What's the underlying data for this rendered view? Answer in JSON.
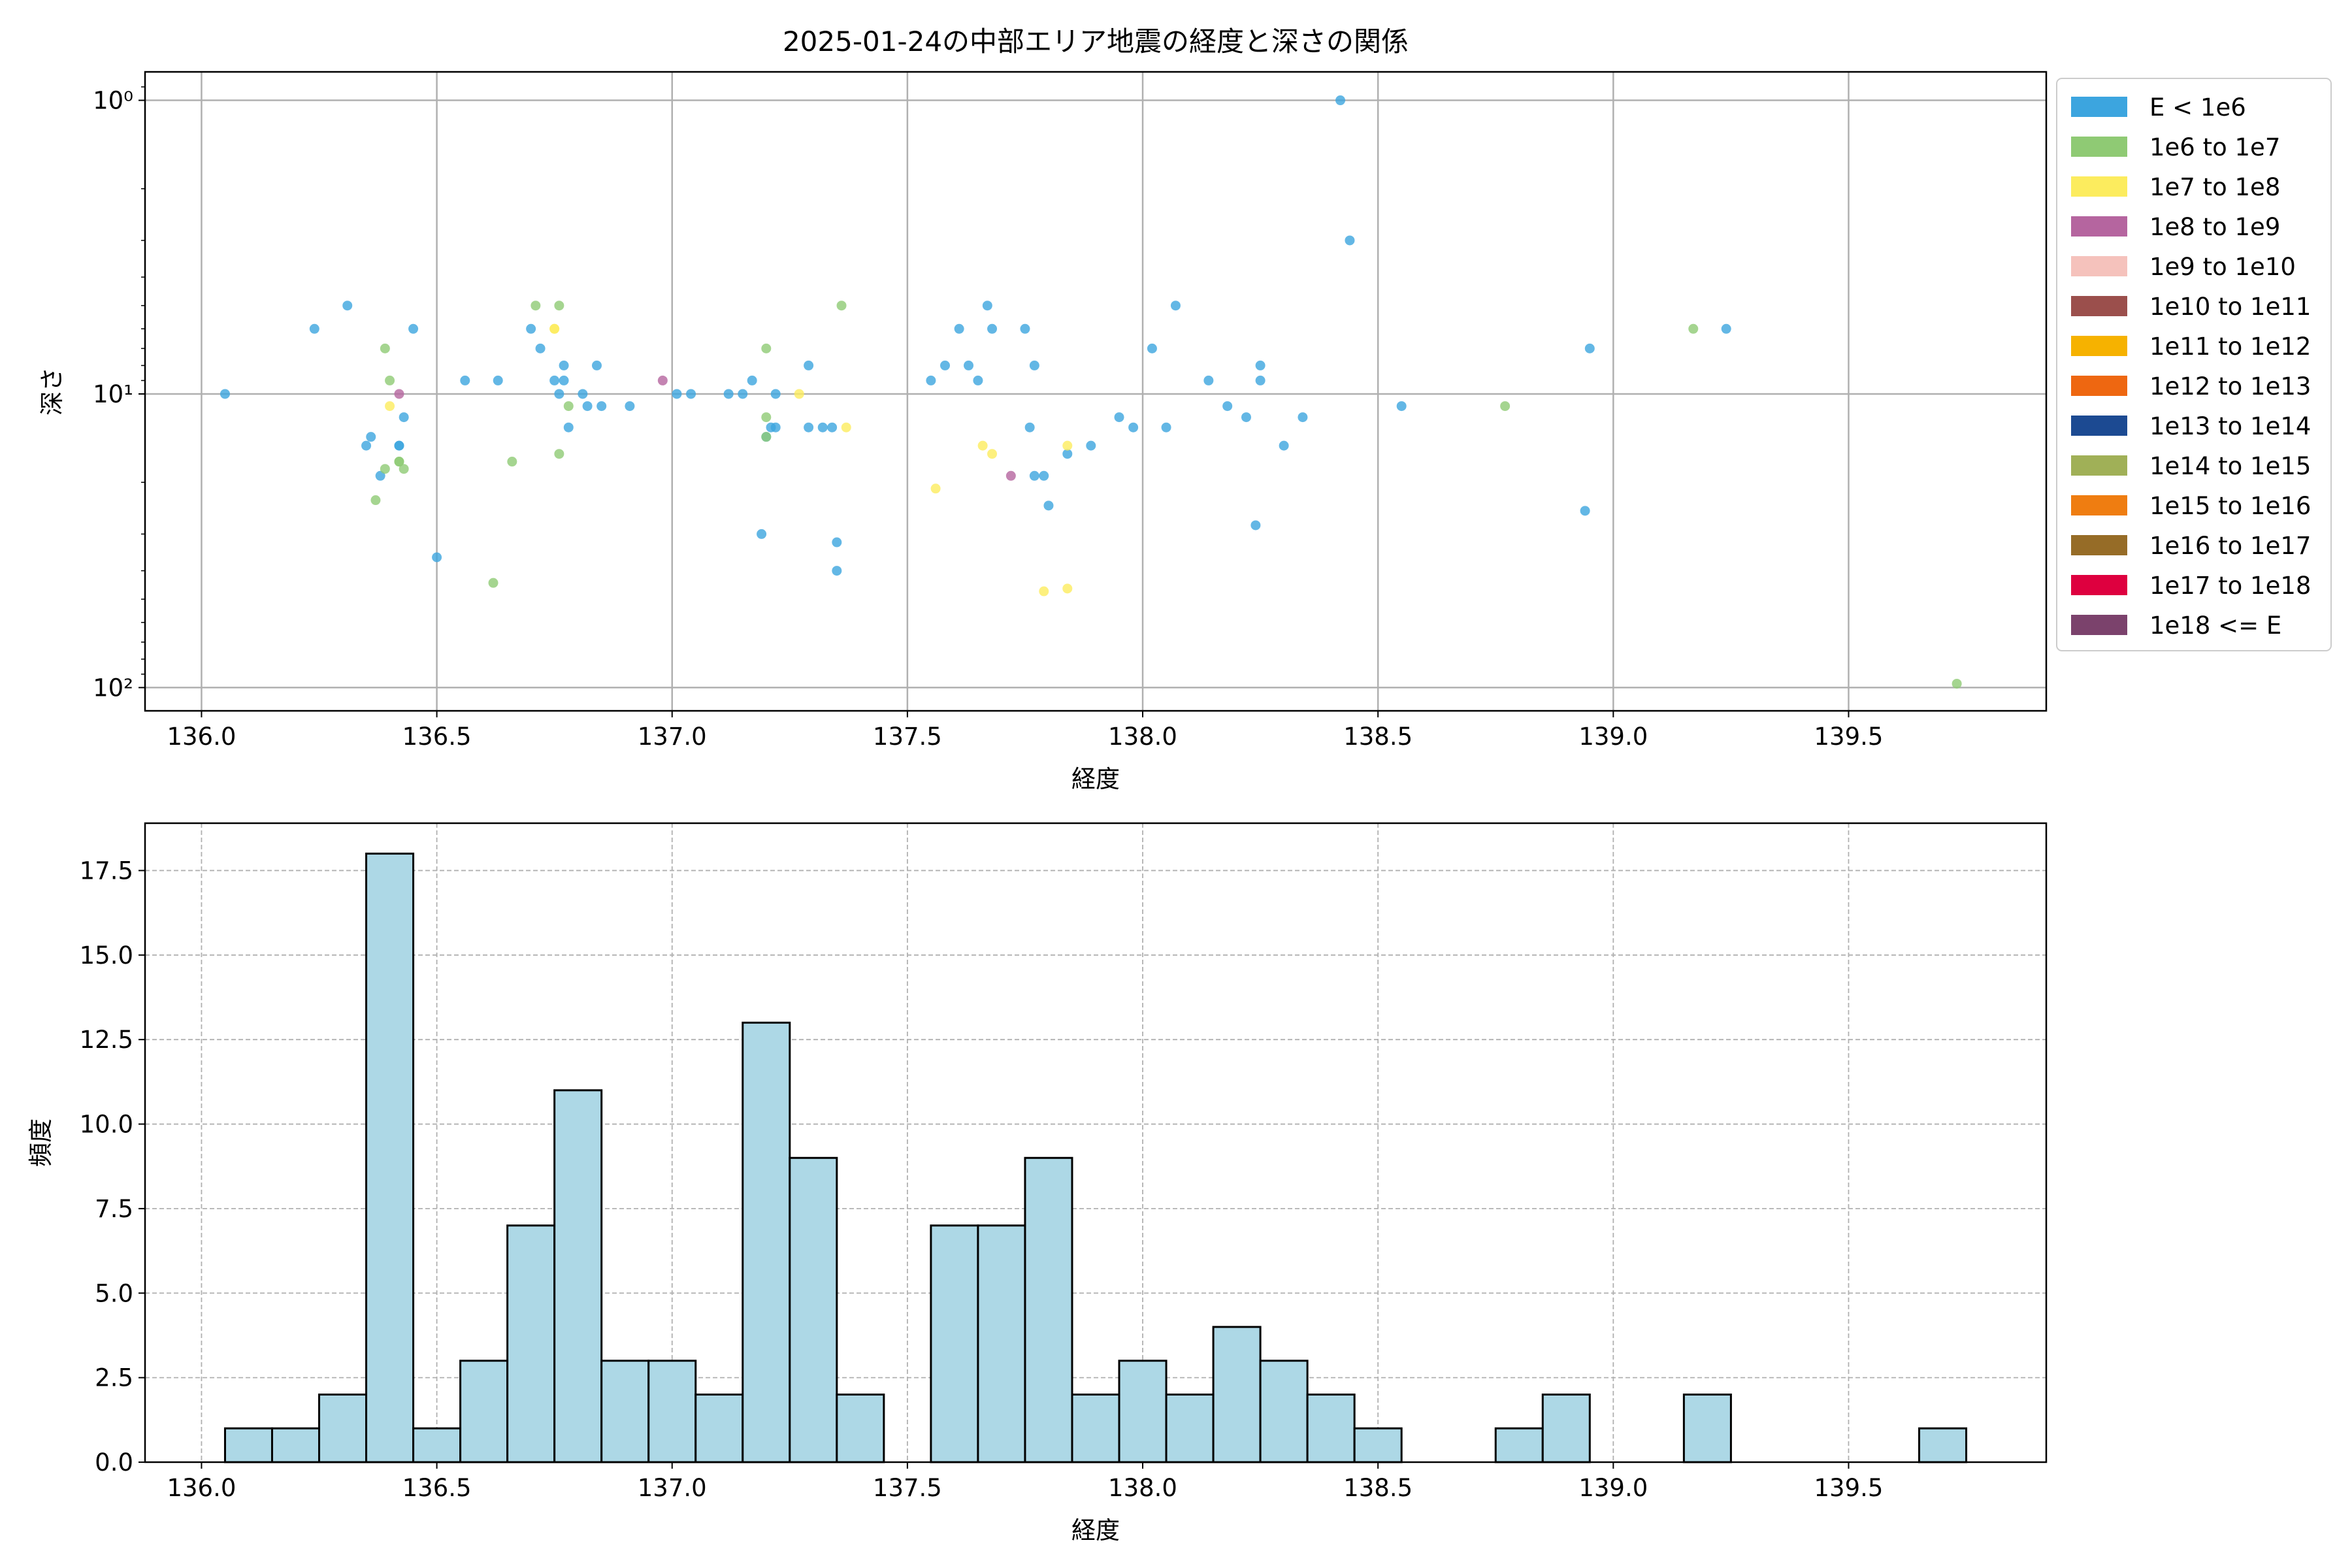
{
  "title": "2025-01-24の中部エリア地震の経度と深さの関係",
  "chart_data": [
    {
      "type": "scatter",
      "xlabel": "経度",
      "ylabel": "深さ",
      "xlim": [
        135.88,
        139.92
      ],
      "y_scale": "log",
      "y_inverted": true,
      "ylim": [
        0.8,
        120
      ],
      "x_ticks": [
        136.0,
        136.5,
        137.0,
        137.5,
        138.0,
        138.5,
        139.0,
        139.5
      ],
      "x_tick_labels": [
        "136.0",
        "136.5",
        "137.0",
        "137.5",
        "138.0",
        "138.5",
        "139.0",
        "139.5"
      ],
      "y_ticks": [
        1,
        10,
        100
      ],
      "y_tick_labels": [
        "10⁰",
        "10¹",
        "10²"
      ],
      "grid": true,
      "legend_position": "outside-right",
      "legend": [
        {
          "label": "E < 1e6",
          "color": "#3ca5df"
        },
        {
          "label": "1e6 to 1e7",
          "color": "#8fca74"
        },
        {
          "label": "1e7 to 1e8",
          "color": "#fcec5e"
        },
        {
          "label": "1e8 to 1e9",
          "color": "#b5659f"
        },
        {
          "label": "1e9 to 1e10",
          "color": "#f5c2bc"
        },
        {
          "label": "1e10 to 1e11",
          "color": "#9b4f4c"
        },
        {
          "label": "1e11 to 1e12",
          "color": "#f6b200"
        },
        {
          "label": "1e12 to 1e13",
          "color": "#ee6711"
        },
        {
          "label": "1e13 to 1e14",
          "color": "#1c4a92"
        },
        {
          "label": "1e14 to 1e15",
          "color": "#a0b057"
        },
        {
          "label": "1e15 to 1e16",
          "color": "#ef7d11"
        },
        {
          "label": "1e16 to 1e17",
          "color": "#966c27"
        },
        {
          "label": "1e17 to 1e18",
          "color": "#de003f"
        },
        {
          "label": "1e18 <= E",
          "color": "#7b426c"
        }
      ],
      "series": [
        {
          "name": "E < 1e6",
          "color": "#3ca5df",
          "points": [
            [
              136.05,
              10
            ],
            [
              136.24,
              6
            ],
            [
              136.31,
              5
            ],
            [
              136.35,
              15
            ],
            [
              136.36,
              14
            ],
            [
              136.38,
              19
            ],
            [
              136.42,
              15
            ],
            [
              136.42,
              15
            ],
            [
              136.43,
              12
            ],
            [
              136.45,
              6
            ],
            [
              136.5,
              36
            ],
            [
              136.56,
              9
            ],
            [
              136.63,
              9
            ],
            [
              136.7,
              6
            ],
            [
              136.72,
              7
            ],
            [
              136.75,
              9
            ],
            [
              136.76,
              10
            ],
            [
              136.77,
              8
            ],
            [
              136.77,
              9
            ],
            [
              136.78,
              13
            ],
            [
              136.81,
              10
            ],
            [
              136.82,
              11
            ],
            [
              136.84,
              8
            ],
            [
              136.85,
              11
            ],
            [
              136.91,
              11
            ],
            [
              137.01,
              10
            ],
            [
              137.04,
              10
            ],
            [
              137.12,
              10
            ],
            [
              137.15,
              10
            ],
            [
              137.17,
              9
            ],
            [
              137.19,
              30
            ],
            [
              137.2,
              14
            ],
            [
              137.21,
              13
            ],
            [
              137.22,
              10
            ],
            [
              137.22,
              13
            ],
            [
              137.29,
              13
            ],
            [
              137.29,
              8
            ],
            [
              137.32,
              13
            ],
            [
              137.34,
              13
            ],
            [
              137.35,
              32
            ],
            [
              137.35,
              40
            ],
            [
              137.55,
              9
            ],
            [
              137.58,
              8
            ],
            [
              137.61,
              6
            ],
            [
              137.63,
              8
            ],
            [
              137.65,
              9
            ],
            [
              137.67,
              5
            ],
            [
              137.68,
              6
            ],
            [
              137.75,
              6
            ],
            [
              137.76,
              13
            ],
            [
              137.77,
              8
            ],
            [
              137.77,
              19
            ],
            [
              137.79,
              19
            ],
            [
              137.8,
              24
            ],
            [
              137.84,
              16
            ],
            [
              137.89,
              15
            ],
            [
              137.95,
              12
            ],
            [
              137.98,
              13
            ],
            [
              138.02,
              7
            ],
            [
              138.05,
              13
            ],
            [
              138.07,
              5
            ],
            [
              138.14,
              9
            ],
            [
              138.18,
              11
            ],
            [
              138.22,
              12
            ],
            [
              138.25,
              9
            ],
            [
              138.25,
              8
            ],
            [
              138.24,
              28
            ],
            [
              138.3,
              15
            ],
            [
              138.34,
              12
            ],
            [
              138.42,
              1
            ],
            [
              138.44,
              3
            ],
            [
              138.55,
              11
            ],
            [
              138.94,
              25
            ],
            [
              138.95,
              7
            ],
            [
              139.24,
              6
            ]
          ]
        },
        {
          "name": "1e6 to 1e7",
          "color": "#8fca74",
          "points": [
            [
              136.37,
              23
            ],
            [
              136.39,
              7
            ],
            [
              136.39,
              18
            ],
            [
              136.4,
              9
            ],
            [
              136.42,
              17
            ],
            [
              136.42,
              17
            ],
            [
              136.43,
              18
            ],
            [
              136.62,
              44
            ],
            [
              136.66,
              17
            ],
            [
              136.71,
              5
            ],
            [
              136.76,
              5
            ],
            [
              136.76,
              16
            ],
            [
              136.78,
              11
            ],
            [
              137.2,
              7
            ],
            [
              137.2,
              12
            ],
            [
              137.2,
              14
            ],
            [
              137.36,
              5
            ],
            [
              138.77,
              11
            ],
            [
              139.17,
              6
            ],
            [
              139.73,
              97
            ]
          ]
        },
        {
          "name": "1e7 to 1e8",
          "color": "#fcec5e",
          "points": [
            [
              136.4,
              11
            ],
            [
              136.75,
              6
            ],
            [
              136.75,
              6
            ],
            [
              137.27,
              10
            ],
            [
              137.37,
              13
            ],
            [
              137.56,
              21
            ],
            [
              137.66,
              15
            ],
            [
              137.68,
              16
            ],
            [
              137.79,
              47
            ],
            [
              137.84,
              46
            ],
            [
              137.84,
              15
            ]
          ]
        },
        {
          "name": "1e8 to 1e9",
          "color": "#b5659f",
          "points": [
            [
              136.42,
              10
            ],
            [
              136.98,
              9
            ],
            [
              137.72,
              19
            ]
          ]
        }
      ]
    },
    {
      "type": "bar",
      "xlabel": "経度",
      "ylabel": "頻度",
      "xlim": [
        135.88,
        139.92
      ],
      "ylim": [
        0,
        18.9
      ],
      "x_ticks": [
        136.0,
        136.5,
        137.0,
        137.5,
        138.0,
        138.5,
        139.0,
        139.5
      ],
      "x_tick_labels": [
        "136.0",
        "136.5",
        "137.0",
        "137.5",
        "138.0",
        "138.5",
        "139.0",
        "139.5"
      ],
      "y_ticks": [
        0,
        2.5,
        5,
        7.5,
        10,
        12.5,
        15,
        17.5
      ],
      "y_tick_labels": [
        "0.0",
        "2.5",
        "5.0",
        "7.5",
        "10.0",
        "12.5",
        "15.0",
        "17.5"
      ],
      "grid": true,
      "bar_color": "#add8e6",
      "bin_start": 136.05,
      "bin_width": 0.1,
      "values": [
        1,
        1,
        2,
        18,
        1,
        3,
        7,
        11,
        3,
        3,
        2,
        13,
        9,
        2,
        0,
        7,
        7,
        9,
        2,
        3,
        2,
        4,
        3,
        2,
        1,
        0,
        0,
        1,
        2,
        0,
        0,
        2,
        0,
        0,
        0,
        0,
        1
      ]
    }
  ]
}
